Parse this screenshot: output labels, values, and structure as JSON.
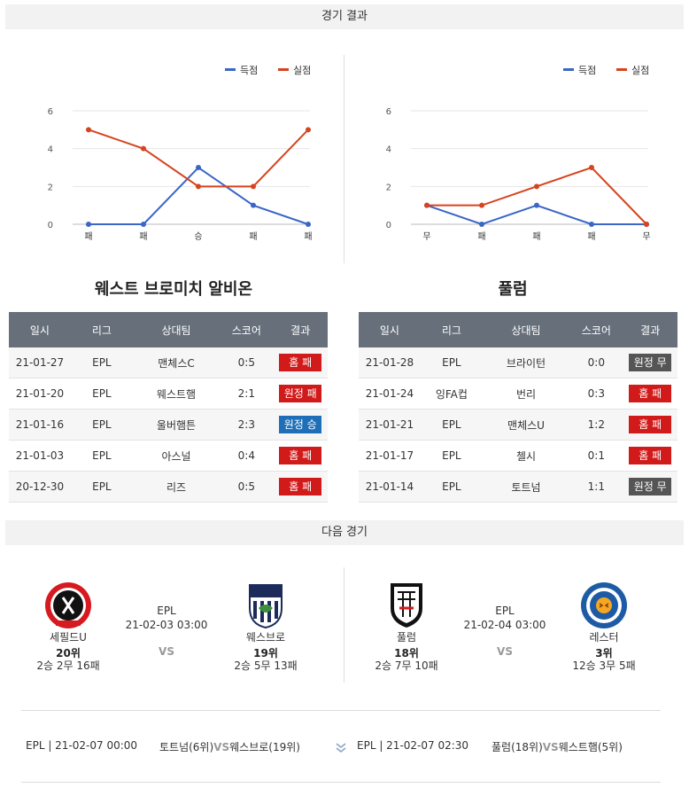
{
  "header": {
    "results_title": "경기 결과",
    "next_title": "다음 경기"
  },
  "legend": {
    "scored": "득점",
    "conceded": "실점"
  },
  "colors": {
    "scored": "#3a66c8",
    "conceded": "#d6441f",
    "loss": "#d11a1a",
    "win": "#1f6fb8",
    "draw": "#555555"
  },
  "chart_data": [
    {
      "type": "line",
      "categories": [
        "패",
        "패",
        "승",
        "패",
        "패"
      ],
      "series": [
        {
          "name": "득점",
          "values": [
            0,
            0,
            3,
            1,
            0
          ]
        },
        {
          "name": "실점",
          "values": [
            5,
            4,
            2,
            2,
            5
          ]
        }
      ],
      "yticks": [
        "0",
        "2",
        "4",
        "6"
      ],
      "ylim": [
        0,
        6
      ],
      "grid": true,
      "legend_position": "top-right"
    },
    {
      "type": "line",
      "categories": [
        "무",
        "패",
        "패",
        "패",
        "무"
      ],
      "series": [
        {
          "name": "득점",
          "values": [
            1,
            0,
            1,
            0,
            0
          ]
        },
        {
          "name": "실점",
          "values": [
            1,
            1,
            2,
            3,
            0
          ]
        }
      ],
      "yticks": [
        "0",
        "2",
        "4",
        "6"
      ],
      "ylim": [
        0,
        6
      ],
      "grid": true,
      "legend_position": "top-right"
    }
  ],
  "table_headers": [
    "일시",
    "리그",
    "상대팀",
    "스코어",
    "결과"
  ],
  "teams": [
    {
      "name": "웨스트 브로미치 알비온",
      "rows": [
        {
          "date": "21-01-27",
          "league": "EPL",
          "opponent": "맨체스C",
          "score": "0:5",
          "result": "홈 패",
          "kind": "loss"
        },
        {
          "date": "21-01-20",
          "league": "EPL",
          "opponent": "웨스트햄",
          "score": "2:1",
          "result": "원정 패",
          "kind": "loss"
        },
        {
          "date": "21-01-16",
          "league": "EPL",
          "opponent": "울버햄튼",
          "score": "2:3",
          "result": "원정 승",
          "kind": "win"
        },
        {
          "date": "21-01-03",
          "league": "EPL",
          "opponent": "아스널",
          "score": "0:4",
          "result": "홈 패",
          "kind": "loss"
        },
        {
          "date": "20-12-30",
          "league": "EPL",
          "opponent": "리즈",
          "score": "0:5",
          "result": "홈 패",
          "kind": "loss"
        }
      ]
    },
    {
      "name": "풀럼",
      "rows": [
        {
          "date": "21-01-28",
          "league": "EPL",
          "opponent": "브라이턴",
          "score": "0:0",
          "result": "원정 무",
          "kind": "draw"
        },
        {
          "date": "21-01-24",
          "league": "잉FA컵",
          "opponent": "번리",
          "score": "0:3",
          "result": "홈 패",
          "kind": "loss"
        },
        {
          "date": "21-01-21",
          "league": "EPL",
          "opponent": "맨체스U",
          "score": "1:2",
          "result": "홈 패",
          "kind": "loss"
        },
        {
          "date": "21-01-17",
          "league": "EPL",
          "opponent": "첼시",
          "score": "0:1",
          "result": "홈 패",
          "kind": "loss"
        },
        {
          "date": "21-01-14",
          "league": "EPL",
          "opponent": "토트넘",
          "score": "1:1",
          "result": "원정 무",
          "kind": "draw"
        }
      ]
    }
  ],
  "next_matches": [
    {
      "league": "EPL",
      "datetime": "21-02-03 03:00",
      "vs": "VS",
      "home": {
        "name": "세필드U",
        "rank": "20위",
        "record": "2승 2무 16패",
        "crest": "sheffield-united-crest"
      },
      "away": {
        "name": "웨스브로",
        "rank": "19위",
        "record": "2승 5무 13패",
        "crest": "west-brom-crest"
      }
    },
    {
      "league": "EPL",
      "datetime": "21-02-04 03:00",
      "vs": "VS",
      "home": {
        "name": "풀럼",
        "rank": "18위",
        "record": "2승 7무 10패",
        "crest": "fulham-crest"
      },
      "away": {
        "name": "레스터",
        "rank": "3위",
        "record": "12승 3무 5패",
        "crest": "leicester-crest"
      }
    }
  ],
  "fixtures": [
    {
      "meta": "EPL | 21-02-07 00:00",
      "home": "토트넘(6위)",
      "vs": "VS",
      "away": "웨스브로(19위)"
    },
    {
      "meta": "EPL | 21-02-07 02:30",
      "home": "풀럼(18위)",
      "vs": "VS",
      "away": "웨스트햄(5위)"
    }
  ],
  "icons": {
    "expand": "chevron-double-down-icon"
  }
}
